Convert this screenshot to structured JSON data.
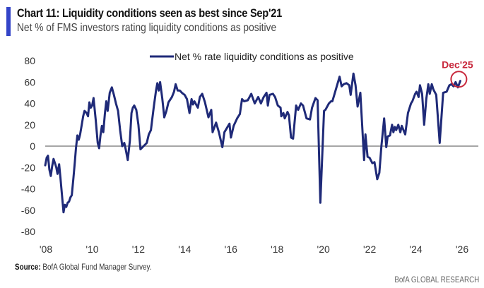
{
  "header": {
    "title": "Chart 11: Liquidity conditions seen as best since Sep'21",
    "subtitle": "Net % of FMS investors rating liquidity conditions as positive"
  },
  "footer": {
    "source_label": "Source:",
    "source_text": " BofA Global Fund Manager Survey.",
    "brand": "BofA GLOBAL RESEARCH"
  },
  "colors": {
    "accent_bar": "#3344c8",
    "series_line": "#1f2a78",
    "zero_line": "#888888",
    "annotation": "#c8283c"
  },
  "chart_data": {
    "type": "line",
    "title": "Chart 11: Liquidity conditions seen as best since Sep'21",
    "subtitle": "Net % of FMS investors rating liquidity conditions as positive",
    "xlabel": "",
    "ylabel": "",
    "xlim": [
      2008,
      2026
    ],
    "ylim": [
      -80,
      80
    ],
    "yticks": [
      80,
      60,
      40,
      20,
      0,
      -20,
      -40,
      -60,
      -80
    ],
    "xticks": [
      {
        "value": 2008,
        "label": "'08"
      },
      {
        "value": 2010,
        "label": "'10"
      },
      {
        "value": 2012,
        "label": "'12"
      },
      {
        "value": 2014,
        "label": "'14"
      },
      {
        "value": 2016,
        "label": "'16"
      },
      {
        "value": 2018,
        "label": "'18"
      },
      {
        "value": 2020,
        "label": "'20"
      },
      {
        "value": 2022,
        "label": "'22"
      },
      {
        "value": 2024,
        "label": "'24"
      },
      {
        "value": 2026,
        "label": "'26"
      }
    ],
    "grid": false,
    "zero_line": true,
    "legend": {
      "position": "top-center",
      "entries": [
        "Net % rate liquidity conditions as positive"
      ]
    },
    "annotations": [
      {
        "text": "Dec'25",
        "x": 2025.92,
        "y": 60,
        "style": "circle"
      }
    ],
    "series": [
      {
        "name": "Net % rate liquidity conditions as positive",
        "points": [
          [
            2007.97,
            -18
          ],
          [
            2008.03,
            -11
          ],
          [
            2008.09,
            -9
          ],
          [
            2008.15,
            -22
          ],
          [
            2008.21,
            -28
          ],
          [
            2008.27,
            -19
          ],
          [
            2008.33,
            -12
          ],
          [
            2008.39,
            -16
          ],
          [
            2008.45,
            -20
          ],
          [
            2008.5,
            -26
          ],
          [
            2008.57,
            -17
          ],
          [
            2008.63,
            -30
          ],
          [
            2008.69,
            -45
          ],
          [
            2008.76,
            -62
          ],
          [
            2008.82,
            -55
          ],
          [
            2008.88,
            -57
          ],
          [
            2008.94,
            -53
          ],
          [
            2009.0,
            -52
          ],
          [
            2009.06,
            -48
          ],
          [
            2009.12,
            -46
          ],
          [
            2009.19,
            -30
          ],
          [
            2009.25,
            -15
          ],
          [
            2009.3,
            -2
          ],
          [
            2009.36,
            10
          ],
          [
            2009.42,
            6
          ],
          [
            2009.48,
            11
          ],
          [
            2009.55,
            20
          ],
          [
            2009.61,
            28
          ],
          [
            2009.67,
            33
          ],
          [
            2009.76,
            31
          ],
          [
            2009.82,
            28
          ],
          [
            2009.88,
            41
          ],
          [
            2009.94,
            36
          ],
          [
            2010.0,
            38
          ],
          [
            2010.06,
            45
          ],
          [
            2010.15,
            25
          ],
          [
            2010.24,
            3
          ],
          [
            2010.3,
            -2
          ],
          [
            2010.36,
            10
          ],
          [
            2010.42,
            19
          ],
          [
            2010.48,
            13
          ],
          [
            2010.55,
            30
          ],
          [
            2010.61,
            42
          ],
          [
            2010.67,
            33
          ],
          [
            2010.76,
            50
          ],
          [
            2010.85,
            55
          ],
          [
            2010.94,
            48
          ],
          [
            2011.03,
            40
          ],
          [
            2011.12,
            33
          ],
          [
            2011.21,
            15
          ],
          [
            2011.3,
            0
          ],
          [
            2011.39,
            3
          ],
          [
            2011.45,
            -3
          ],
          [
            2011.54,
            -13
          ],
          [
            2011.63,
            5
          ],
          [
            2011.7,
            31
          ],
          [
            2011.76,
            36
          ],
          [
            2011.82,
            38
          ],
          [
            2011.91,
            34
          ],
          [
            2012.0,
            20
          ],
          [
            2012.09,
            -3
          ],
          [
            2012.18,
            -1
          ],
          [
            2012.27,
            1
          ],
          [
            2012.36,
            3
          ],
          [
            2012.45,
            11
          ],
          [
            2012.54,
            15
          ],
          [
            2012.66,
            36
          ],
          [
            2012.76,
            52
          ],
          [
            2012.82,
            59
          ],
          [
            2012.88,
            52
          ],
          [
            2012.94,
            60
          ],
          [
            2013.03,
            45
          ],
          [
            2013.12,
            27
          ],
          [
            2013.21,
            33
          ],
          [
            2013.3,
            41
          ],
          [
            2013.45,
            46
          ],
          [
            2013.54,
            51
          ],
          [
            2013.61,
            58
          ],
          [
            2013.7,
            52
          ],
          [
            2013.79,
            52
          ],
          [
            2013.88,
            50
          ],
          [
            2014.0,
            48
          ],
          [
            2014.1,
            44
          ],
          [
            2014.21,
            31
          ],
          [
            2014.3,
            44
          ],
          [
            2014.36,
            39
          ],
          [
            2014.42,
            42
          ],
          [
            2014.57,
            36
          ],
          [
            2014.66,
            46
          ],
          [
            2014.76,
            49
          ],
          [
            2014.88,
            41
          ],
          [
            2015.03,
            27
          ],
          [
            2015.15,
            34
          ],
          [
            2015.21,
            13
          ],
          [
            2015.36,
            22
          ],
          [
            2015.48,
            13
          ],
          [
            2015.63,
            -1
          ],
          [
            2015.72,
            13
          ],
          [
            2015.94,
            21
          ],
          [
            2016.0,
            8
          ],
          [
            2016.12,
            19
          ],
          [
            2016.27,
            26
          ],
          [
            2016.39,
            30
          ],
          [
            2016.48,
            44
          ],
          [
            2016.57,
            42
          ],
          [
            2016.73,
            43
          ],
          [
            2016.88,
            49
          ],
          [
            2017.03,
            40
          ],
          [
            2017.18,
            46
          ],
          [
            2017.3,
            40
          ],
          [
            2017.42,
            46
          ],
          [
            2017.54,
            50
          ],
          [
            2017.6,
            38
          ],
          [
            2017.67,
            48
          ],
          [
            2017.82,
            49
          ],
          [
            2017.91,
            46
          ],
          [
            2018.03,
            38
          ],
          [
            2018.15,
            36
          ],
          [
            2018.18,
            28
          ],
          [
            2018.27,
            31
          ],
          [
            2018.33,
            26
          ],
          [
            2018.45,
            32
          ],
          [
            2018.51,
            29
          ],
          [
            2018.6,
            8
          ],
          [
            2018.69,
            7
          ],
          [
            2018.82,
            38
          ],
          [
            2018.91,
            34
          ],
          [
            2019.03,
            40
          ],
          [
            2019.12,
            38
          ],
          [
            2019.27,
            26
          ],
          [
            2019.42,
            25
          ],
          [
            2019.51,
            36
          ],
          [
            2019.66,
            45
          ],
          [
            2019.75,
            43
          ],
          [
            2019.87,
            -53
          ],
          [
            2020.03,
            33
          ],
          [
            2020.09,
            34
          ],
          [
            2020.24,
            40
          ],
          [
            2020.33,
            42
          ],
          [
            2020.39,
            42
          ],
          [
            2020.51,
            51
          ],
          [
            2020.7,
            65
          ],
          [
            2020.79,
            56
          ],
          [
            2020.88,
            58
          ],
          [
            2021.0,
            59
          ],
          [
            2021.12,
            57
          ],
          [
            2021.18,
            48
          ],
          [
            2021.3,
            68
          ],
          [
            2021.39,
            57
          ],
          [
            2021.48,
            37
          ],
          [
            2021.6,
            50
          ],
          [
            2021.76,
            -13
          ],
          [
            2021.82,
            11
          ],
          [
            2021.91,
            -10
          ],
          [
            2022.0,
            -11
          ],
          [
            2022.12,
            -16
          ],
          [
            2022.21,
            -15
          ],
          [
            2022.33,
            -31
          ],
          [
            2022.42,
            -25
          ],
          [
            2022.51,
            0
          ],
          [
            2022.63,
            26
          ],
          [
            2022.72,
            -1
          ],
          [
            2022.78,
            9
          ],
          [
            2022.88,
            10
          ],
          [
            2022.97,
            20
          ],
          [
            2023.03,
            13
          ],
          [
            2023.09,
            18
          ],
          [
            2023.15,
            15
          ],
          [
            2023.24,
            20
          ],
          [
            2023.33,
            13
          ],
          [
            2023.39,
            19
          ],
          [
            2023.54,
            11
          ],
          [
            2023.66,
            31
          ],
          [
            2023.79,
            40
          ],
          [
            2023.85,
            42
          ],
          [
            2023.97,
            49
          ],
          [
            2024.03,
            51
          ],
          [
            2024.12,
            46
          ],
          [
            2024.18,
            57
          ],
          [
            2024.27,
            49
          ],
          [
            2024.36,
            20
          ],
          [
            2024.45,
            44
          ],
          [
            2024.54,
            58
          ],
          [
            2024.6,
            49
          ],
          [
            2024.69,
            58
          ],
          [
            2024.76,
            53
          ],
          [
            2024.88,
            48
          ],
          [
            2025.03,
            3
          ],
          [
            2025.18,
            50
          ],
          [
            2025.33,
            51
          ],
          [
            2025.45,
            57
          ],
          [
            2025.54,
            58
          ],
          [
            2025.63,
            56
          ],
          [
            2025.72,
            60
          ],
          [
            2025.82,
            55
          ],
          [
            2025.92,
            61
          ]
        ]
      }
    ]
  }
}
